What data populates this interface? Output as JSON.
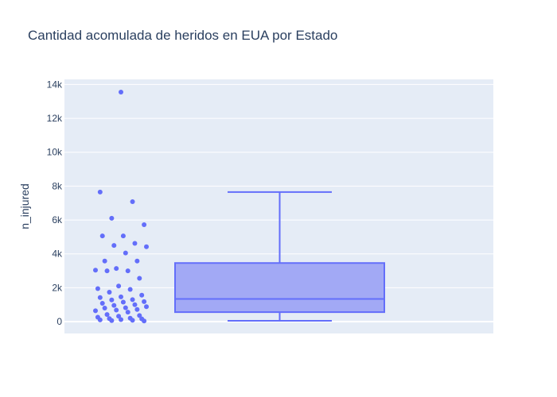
{
  "colors": {
    "plot_bg": "#e5ecf6",
    "grid": "#ffffff",
    "marker": "#636efa",
    "box_fill": "#a2a9f5",
    "text": "#2a3f5f"
  },
  "chart_data": {
    "type": "box",
    "title": "Cantidad acomulada de heridos en EUA por Estado",
    "xlabel": "",
    "ylabel": "n_injured",
    "ylim": [
      -700,
      14300
    ],
    "yticks": [
      {
        "value": 0,
        "label": "0"
      },
      {
        "value": 2000,
        "label": "2k"
      },
      {
        "value": 4000,
        "label": "4k"
      },
      {
        "value": 6000,
        "label": "6k"
      },
      {
        "value": 8000,
        "label": "8k"
      },
      {
        "value": 10000,
        "label": "10k"
      },
      {
        "value": 12000,
        "label": "12k"
      },
      {
        "value": 14000,
        "label": "14k"
      }
    ],
    "grid": true,
    "box": {
      "min": 50,
      "q1": 560,
      "median": 1340,
      "q3": 3460,
      "whisker_high": 7650
    },
    "points": [
      13550,
      7650,
      7080,
      6100,
      5720,
      5060,
      5060,
      4620,
      4500,
      4420,
      4050,
      3580,
      3580,
      3140,
      3040,
      3000,
      3000,
      2560,
      2100,
      1950,
      1900,
      1740,
      1560,
      1460,
      1420,
      1300,
      1280,
      1180,
      1150,
      1080,
      1000,
      960,
      880,
      820,
      800,
      720,
      680,
      640,
      560,
      420,
      360,
      320,
      260,
      200,
      180,
      160,
      120,
      100,
      80,
      60,
      40
    ]
  }
}
